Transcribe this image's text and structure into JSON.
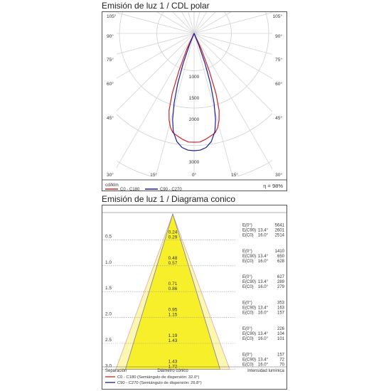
{
  "polar": {
    "title": "Emisión de luz 1 / CDL polar",
    "unit": "cd/klm",
    "efficiency": "η = 98%",
    "angle_labels_left": [
      "105°",
      "90°",
      "75°",
      "60°",
      "45°",
      "30°"
    ],
    "angle_labels_right": [
      "105°",
      "90°",
      "75°",
      "60°",
      "45°",
      "30°"
    ],
    "bottom_labels": [
      "15°",
      "0°",
      "15°"
    ],
    "legend": [
      {
        "name": "C0 - C180",
        "color": "#d42020"
      },
      {
        "name": "C90 - C270",
        "color": "#1c1c9c"
      }
    ]
  },
  "cone": {
    "title": "Emisión de luz 1 / Diagrama conico",
    "footer": {
      "left": "Separación",
      "center": "Diámetro cónico",
      "right": "Intensidad lumínica"
    },
    "legend": [
      {
        "name": "C0 - C180 (Semiángulo de dispersión: 32.0°)",
        "color": "#d42020"
      },
      {
        "name": "C90 - C270 (Semiángulo de dispersión: 26.8°)",
        "color": "#1c1c9c"
      }
    ]
  },
  "chart_data": [
    {
      "type": "polar",
      "title": "Emisión de luz 1 / CDL polar",
      "unit": "cd/klm",
      "efficiency": "η = 98%",
      "radial_ticks": [
        1000,
        1500,
        2000,
        3000
      ],
      "rmax": 3500,
      "angle_ticks_deg": [
        0,
        15,
        30,
        45,
        60,
        75,
        90,
        105
      ],
      "series": [
        {
          "name": "C0 - C180",
          "color": "#d42020",
          "angles": [
            0,
            3,
            6,
            9,
            12,
            14,
            16,
            18,
            20,
            22,
            25,
            30
          ],
          "values": [
            2550,
            2550,
            2500,
            2440,
            2380,
            2280,
            2120,
            1900,
            1500,
            950,
            400,
            0
          ]
        },
        {
          "name": "C90 - C270",
          "color": "#1c1c9c",
          "angles": [
            0,
            3,
            6,
            9,
            12,
            14,
            16,
            18,
            20,
            22,
            25
          ],
          "values": [
            2750,
            2740,
            2690,
            2570,
            2350,
            2080,
            1700,
            1250,
            750,
            300,
            0
          ]
        }
      ]
    },
    {
      "type": "table",
      "title": "Emisión de luz 1 / Diagrama conico",
      "rows": [
        {
          "separation": "0.5",
          "d1": "0.24",
          "d2": "0.29",
          "lines": [
            [
              "E(0°)",
              "",
              "5641"
            ],
            [
              "E(C90)",
              "13.4°",
              "2601"
            ],
            [
              "E(C0)",
              "16.0°",
              "2514"
            ]
          ]
        },
        {
          "separation": "1.0",
          "d1": "0.48",
          "d2": "0.57",
          "lines": [
            [
              "E(0°)",
              "",
              "1410"
            ],
            [
              "E(C90)",
              "13.4°",
              "650"
            ],
            [
              "E(C0)",
              "16.0°",
              "628"
            ]
          ]
        },
        {
          "separation": "1.5",
          "d1": "0.71",
          "d2": "0.86",
          "lines": [
            [
              "E(0°)",
              "",
              "627"
            ],
            [
              "E(C90)",
              "13.4°",
              "289"
            ],
            [
              "E(C0)",
              "16.0°",
              "279"
            ]
          ]
        },
        {
          "separation": "2.0",
          "d1": "0.95",
          "d2": "1.15",
          "lines": [
            [
              "E(0°)",
              "",
              "353"
            ],
            [
              "E(C90)",
              "13.4°",
              "163"
            ],
            [
              "E(C0)",
              "16.0°",
              "157"
            ]
          ]
        },
        {
          "separation": "2.5",
          "d1": "1.19",
          "d2": "1.43",
          "lines": [
            [
              "E(0°)",
              "",
              "226"
            ],
            [
              "E(C90)",
              "13.4°",
              "104"
            ],
            [
              "E(C0)",
              "16.0°",
              "101"
            ]
          ]
        },
        {
          "separation": "3.0",
          "d1": "1.43",
          "d2": "1.72",
          "lines": [
            [
              "E(0°)",
              "",
              "157"
            ],
            [
              "E(C90)",
              "13.4°",
              "72"
            ],
            [
              "E(C0)",
              "16.0°",
              "70"
            ]
          ]
        }
      ]
    }
  ]
}
